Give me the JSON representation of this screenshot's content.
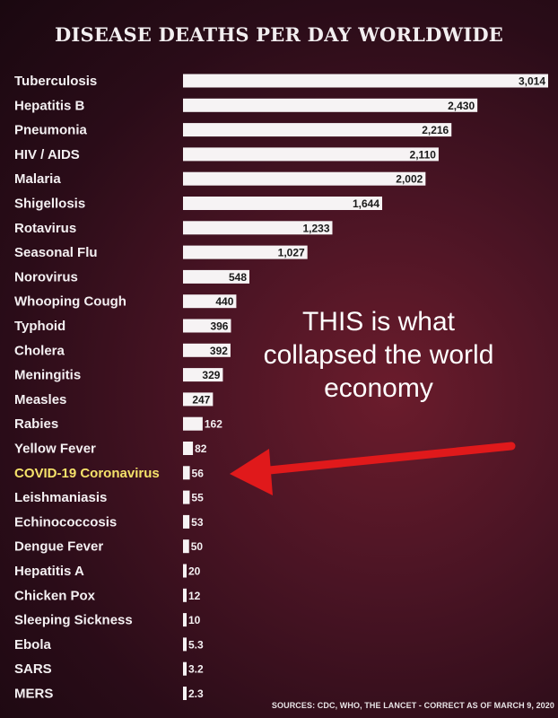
{
  "chart_data": {
    "type": "bar",
    "orientation": "horizontal",
    "title": "DISEASE DEATHS PER DAY WORLDWIDE",
    "categories": [
      "Tuberculosis",
      "Hepatitis B",
      "Pneumonia",
      "HIV / AIDS",
      "Malaria",
      "Shigellosis",
      "Rotavirus",
      "Seasonal Flu",
      "Norovirus",
      "Whooping Cough",
      "Typhoid",
      "Cholera",
      "Meningitis",
      "Measles",
      "Rabies",
      "Yellow Fever",
      "COVID-19 Coronavirus",
      "Leishmaniasis",
      "Echinococcosis",
      "Dengue Fever",
      "Hepatitis A",
      "Chicken Pox",
      "Sleeping Sickness",
      "Ebola",
      "SARS",
      "MERS"
    ],
    "values": [
      3014,
      2430,
      2216,
      2110,
      2002,
      1644,
      1233,
      1027,
      548,
      440,
      396,
      392,
      329,
      247,
      162,
      82,
      56,
      55,
      53,
      50,
      20,
      12,
      10,
      5.3,
      3.2,
      2.3
    ],
    "value_labels": [
      "3,014",
      "2,430",
      "2,216",
      "2,110",
      "2,002",
      "1,644",
      "1,233",
      "1,027",
      "548",
      "440",
      "396",
      "392",
      "329",
      "247",
      "162",
      "82",
      "56",
      "55",
      "53",
      "50",
      "20",
      "12",
      "10",
      "5.3",
      "3.2",
      "2.3"
    ],
    "highlight_category": "COVID-19 Coronavirus",
    "xlim": [
      0,
      3014
    ],
    "grid": false,
    "legend": "none"
  },
  "annotation": {
    "line1": "THIS is what",
    "line2": "collapsed the world",
    "line3": "economy"
  },
  "sources": "SOURCES: CDC, WHO, THE LANCET - CORRECT AS OF MARCH 9, 2020",
  "colors": {
    "bar": "#f6f3f4",
    "highlight_label": "#f5e26a",
    "arrow": "#e0191b",
    "background": "#4a1424"
  }
}
